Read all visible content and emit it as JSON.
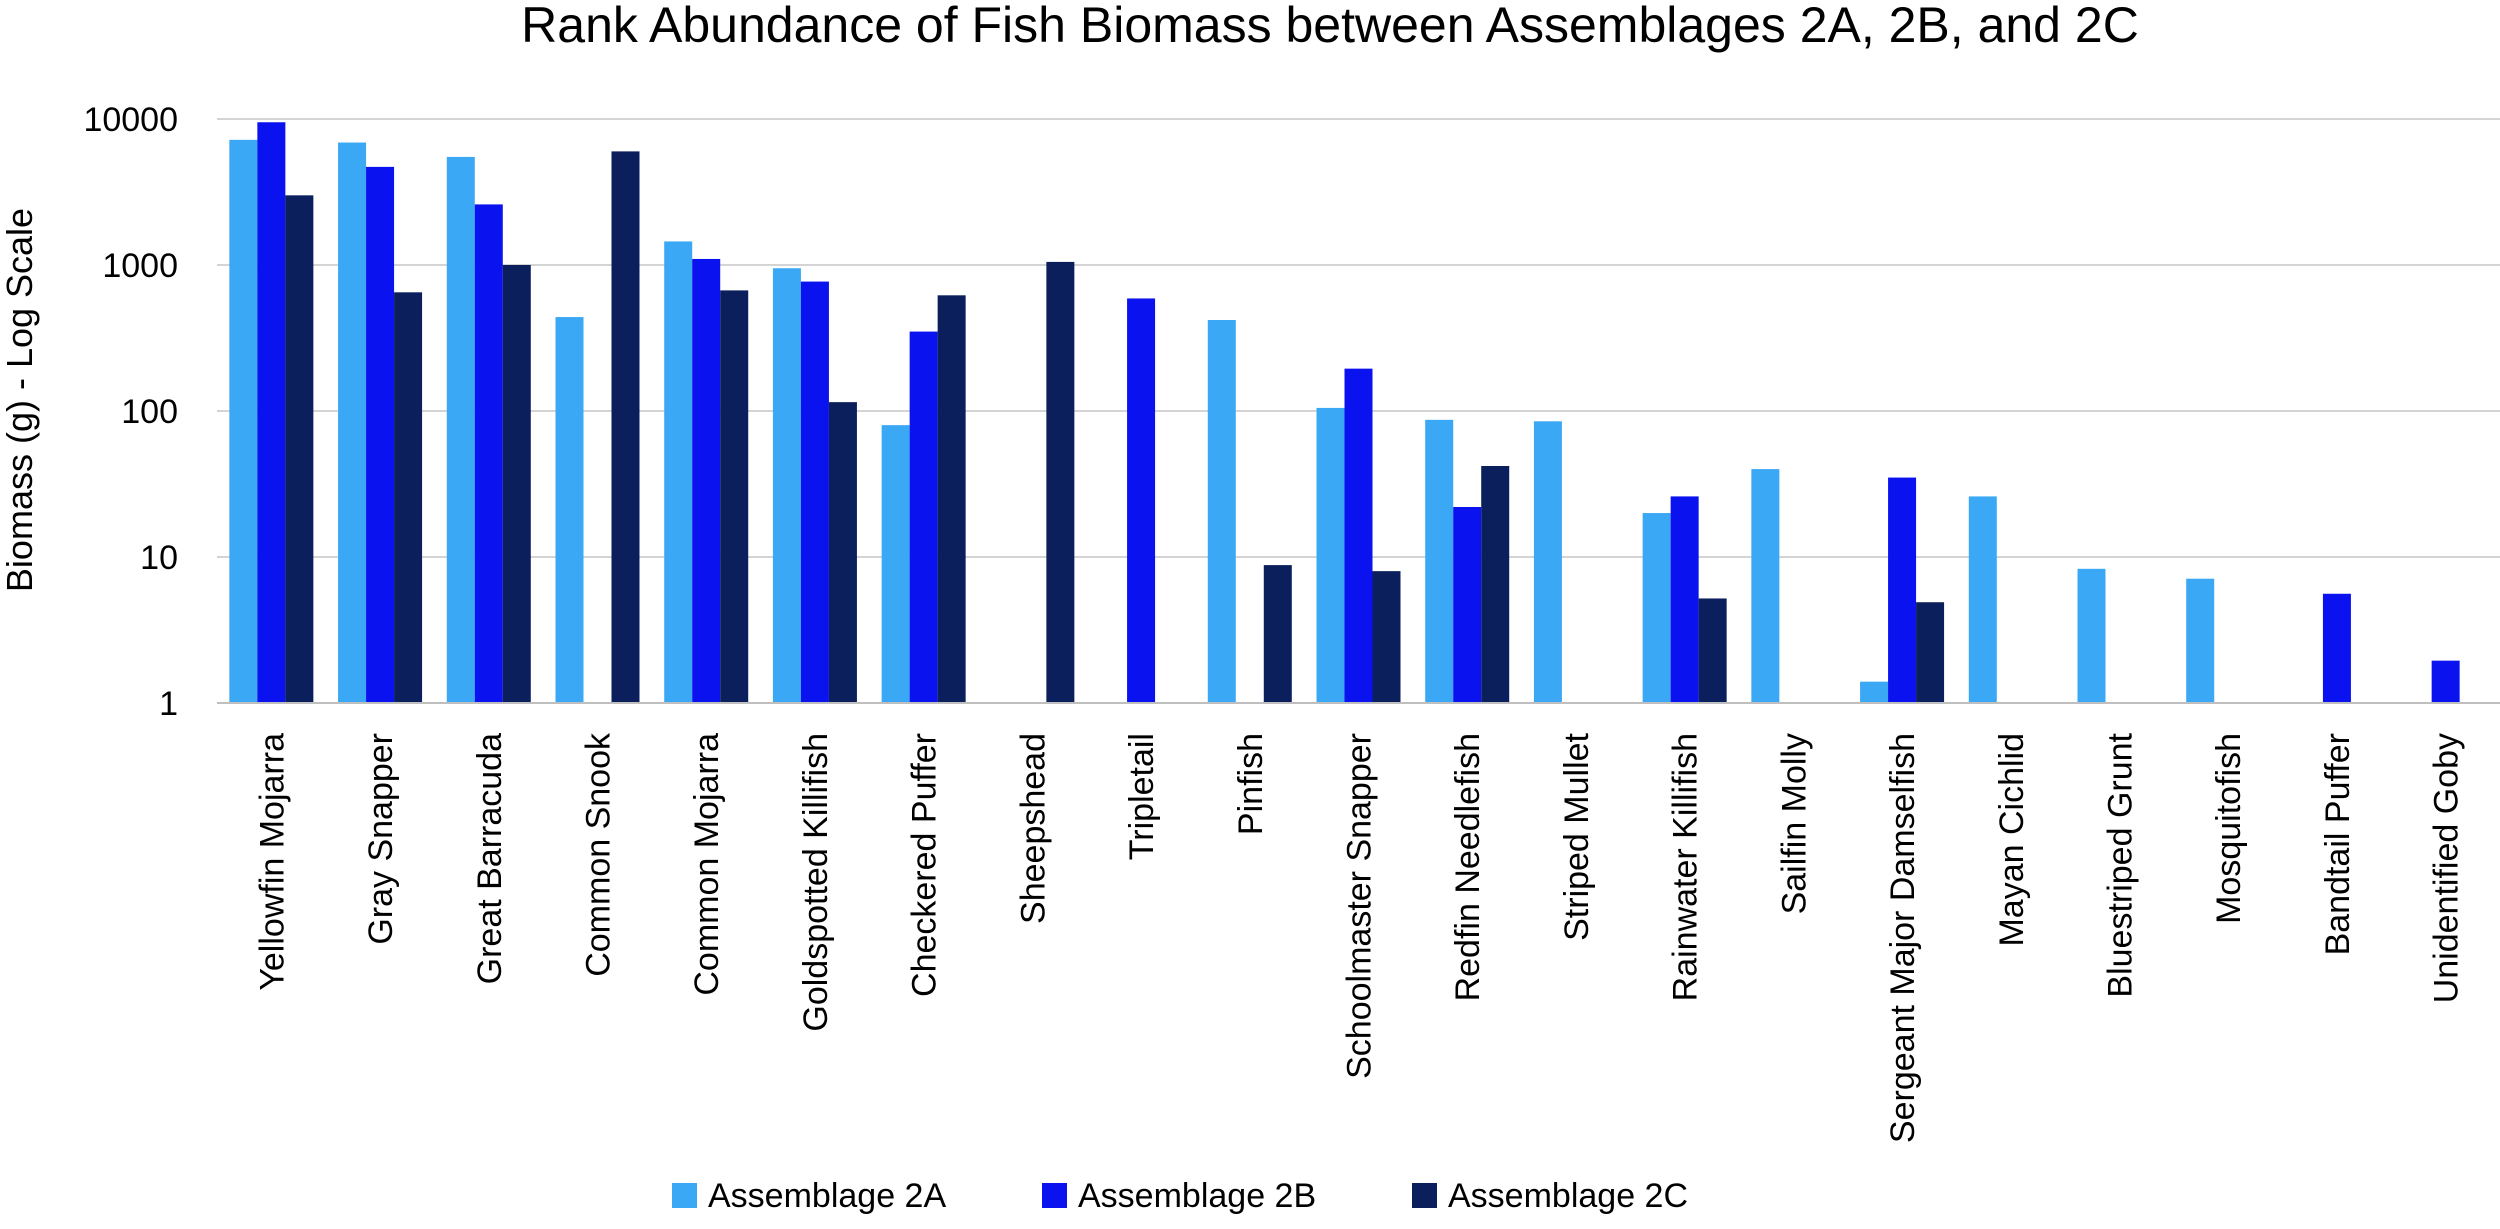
{
  "chart_data": {
    "type": "bar",
    "title": "Rank Abundance of Fish Biomass between Assemblages 2A, 2B, and 2C",
    "xlabel": "",
    "ylabel": "Biomass (g) - Log Scale",
    "yscale": "log",
    "ylim": [
      1,
      10000
    ],
    "yticks": [
      "1",
      "10",
      "100",
      "1000",
      "10000"
    ],
    "grid": true,
    "legend_position": "bottom",
    "categories": [
      "Yellowfin Mojarra",
      "Gray Snapper",
      "Great Barracuda",
      "Common Snook",
      "Common Mojarra",
      "Goldspotted Killifish",
      "Checkered Puffer",
      "Sheepshead",
      "Tripletail",
      "Pinfish",
      "Schoolmaster Snapper",
      "Redfin Needlefish",
      "Striped Mullet",
      "Rainwater Killifish",
      "Sailfin Molly",
      "Sergeant Major Damselfish",
      "Mayan Cichlid",
      "Bluestriped Grunt",
      "Mosquitofish",
      "Bandtail Puffer",
      "Unidentified Goby"
    ],
    "series": [
      {
        "name": "Assemblage 2A",
        "color": "#3aa8f5",
        "values": [
          7200,
          6900,
          5500,
          440,
          1450,
          950,
          80,
          null,
          null,
          420,
          105,
          87,
          85,
          20,
          40,
          1.4,
          26,
          8.3,
          7.1,
          null,
          null
        ]
      },
      {
        "name": "Assemblage 2B",
        "color": "#0a12f0",
        "values": [
          9500,
          4700,
          2600,
          null,
          1100,
          770,
          350,
          null,
          590,
          null,
          195,
          22,
          null,
          26,
          null,
          35,
          null,
          null,
          null,
          5.6,
          1.95
        ]
      },
      {
        "name": "Assemblage 2C",
        "color": "#0a1f5c",
        "values": [
          3000,
          650,
          1000,
          6000,
          670,
          115,
          620,
          1050,
          null,
          8.8,
          8,
          42,
          null,
          5.2,
          null,
          4.9,
          null,
          null,
          null,
          null,
          null
        ]
      }
    ]
  }
}
